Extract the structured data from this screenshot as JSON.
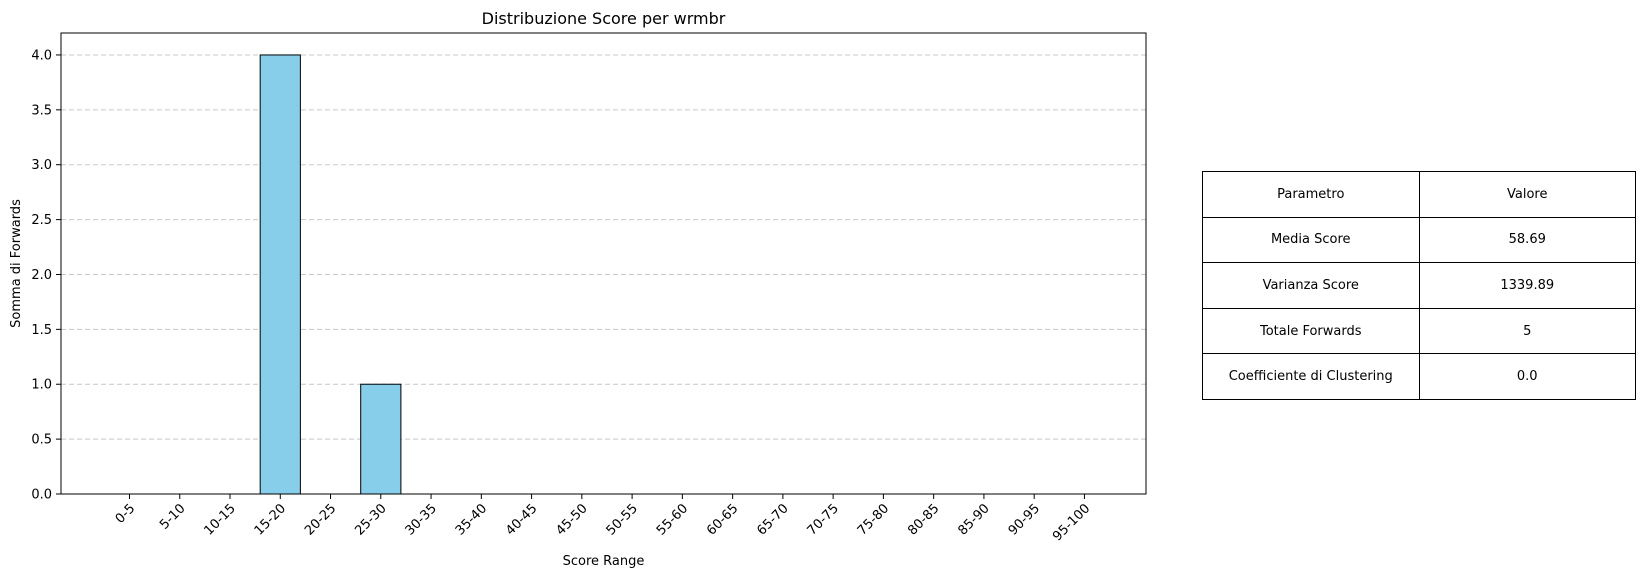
{
  "chart_data": {
    "type": "bar",
    "title": "Distribuzione Score per wrmbr",
    "xlabel": "Score Range",
    "ylabel": "Somma di Forwards",
    "categories": [
      "0-5",
      "5-10",
      "10-15",
      "15-20",
      "20-25",
      "25-30",
      "30-35",
      "35-40",
      "40-45",
      "45-50",
      "50-55",
      "55-60",
      "60-65",
      "65-70",
      "70-75",
      "75-80",
      "80-85",
      "85-90",
      "90-95",
      "95-100"
    ],
    "values": [
      0,
      0,
      0,
      4,
      0,
      1,
      0,
      0,
      0,
      0,
      0,
      0,
      0,
      0,
      0,
      0,
      0,
      0,
      0,
      0
    ],
    "ylim": [
      0,
      4.2
    ],
    "yticks": [
      "0.0",
      "0.5",
      "1.0",
      "1.5",
      "2.0",
      "2.5",
      "3.0",
      "3.5",
      "4.0"
    ],
    "grid": "y-dashed",
    "bar_color": "#87ceeb",
    "edge_color": "#000000"
  },
  "table": {
    "header": {
      "param": "Parametro",
      "value": "Valore"
    },
    "rows": [
      {
        "param": "Media Score",
        "value": "58.69"
      },
      {
        "param": "Varianza Score",
        "value": "1339.89"
      },
      {
        "param": "Totale Forwards",
        "value": "5"
      },
      {
        "param": "Coefficiente di Clustering",
        "value": "0.0"
      }
    ]
  }
}
